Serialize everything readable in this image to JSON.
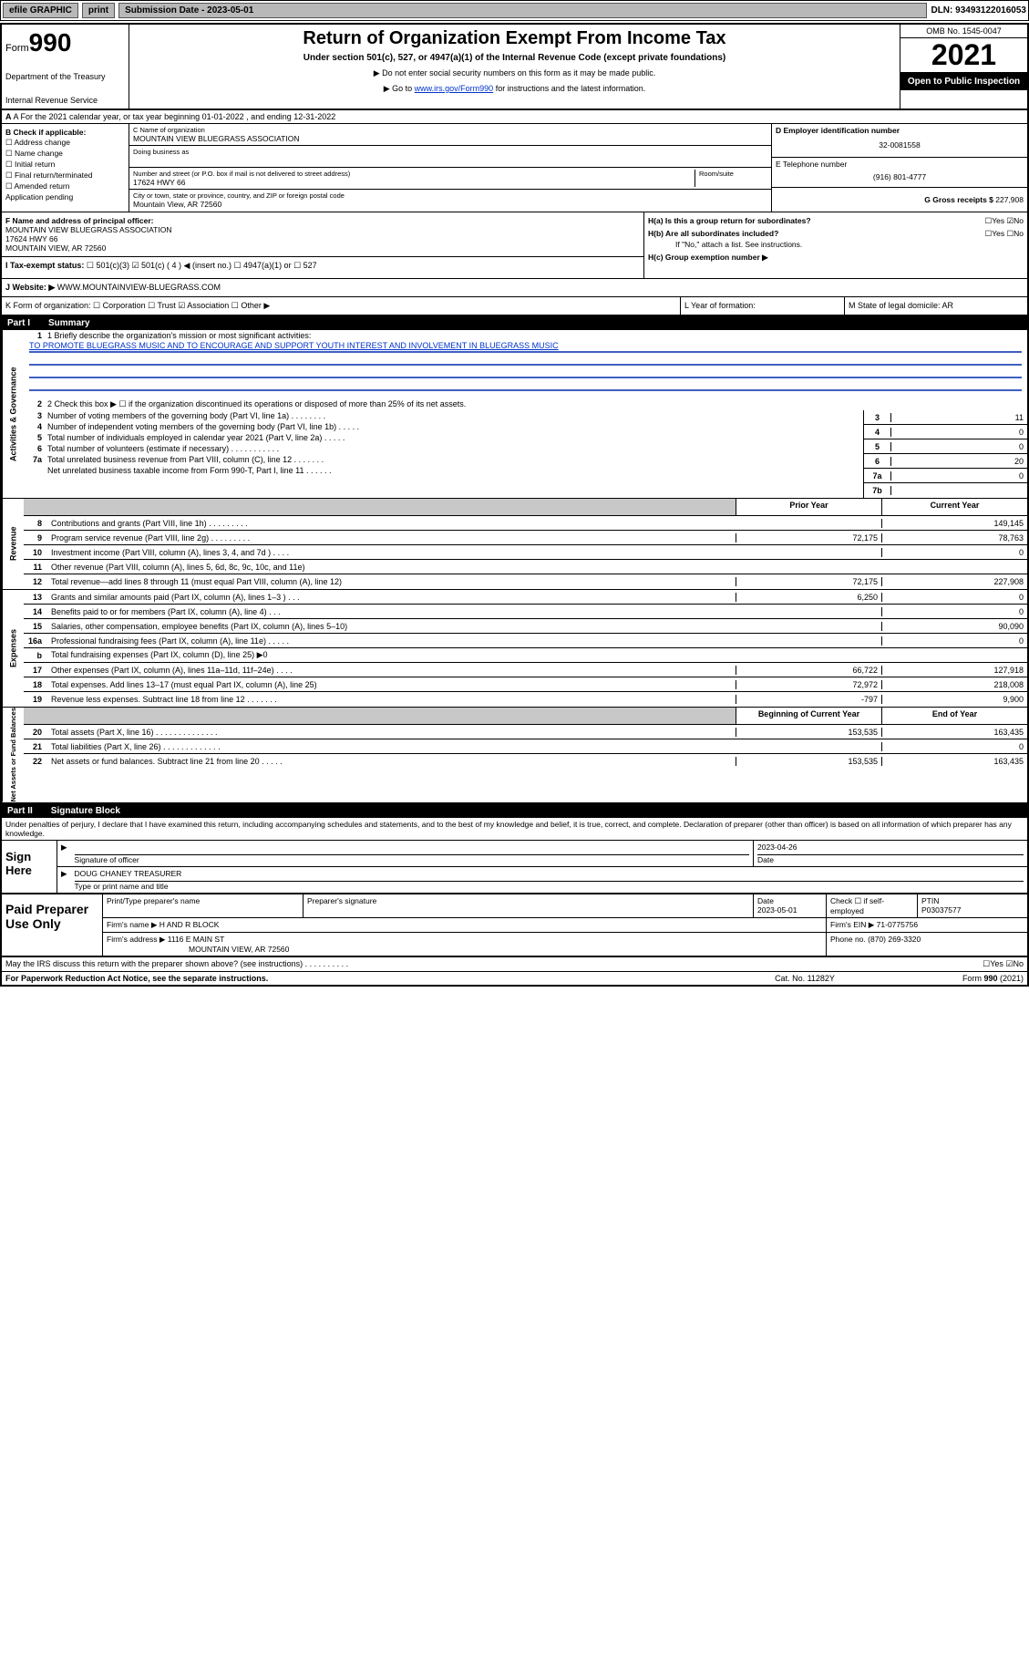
{
  "topbar": {
    "efile": "efile GRAPHIC",
    "print": "print",
    "sub_label": "Submission Date - 2023-05-01",
    "dln": "DLN: 93493122016053"
  },
  "header": {
    "form_prefix": "Form",
    "form_no": "990",
    "dept": "Department of the Treasury",
    "irs": "Internal Revenue Service",
    "title": "Return of Organization Exempt From Income Tax",
    "sub": "Under section 501(c), 527, or 4947(a)(1) of the Internal Revenue Code (except private foundations)",
    "note1": "▶ Do not enter social security numbers on this form as it may be made public.",
    "note2_pre": "▶ Go to ",
    "note2_link": "www.irs.gov/Form990",
    "note2_post": " for instructions and the latest information.",
    "omb": "OMB No. 1545-0047",
    "year": "2021",
    "open": "Open to Public Inspection"
  },
  "rowA": "A For the 2021 calendar year, or tax year beginning 01-01-2022    , and ending 12-31-2022",
  "colB": {
    "label": "B Check if applicable:",
    "items": [
      "☐ Address change",
      "☐ Name change",
      "☐ Initial return",
      "☐ Final return/terminated",
      "☐ Amended return",
      "Application pending"
    ]
  },
  "colC": {
    "name_label": "C Name of organization",
    "name": "MOUNTAIN VIEW BLUEGRASS ASSOCIATION",
    "dba_label": "Doing business as",
    "addr_label": "Number and street (or P.O. box if mail is not delivered to street address)",
    "room": "Room/suite",
    "addr": "17624 HWY 66",
    "city_label": "City or town, state or province, country, and ZIP or foreign postal code",
    "city": "Mountain View, AR  72560"
  },
  "colD": {
    "d_label": "D Employer identification number",
    "d_val": "32-0081558",
    "e_label": "E Telephone number",
    "e_val": "(916) 801-4777",
    "g_label": "G Gross receipts $",
    "g_val": "227,908"
  },
  "rowF": {
    "f_label": "F Name and address of principal officer:",
    "f_name": "MOUNTAIN VIEW BLUEGRASS ASSOCIATION",
    "f_addr": "17624 HWY 66",
    "f_city": "MOUNTAIN VIEW, AR  72560",
    "ha": "H(a)  Is this a group return for subordinates?",
    "ha_ans": "☐Yes ☑No",
    "hb": "H(b)  Are all subordinates included?",
    "hb_ans": "☐Yes ☐No",
    "hb_note": "If \"No,\" attach a list. See instructions.",
    "hc": "H(c)  Group exemption number ▶"
  },
  "rowI": {
    "label": "I   Tax-exempt status:",
    "opts": "☐ 501(c)(3)   ☑ 501(c) ( 4 ) ◀ (insert no.)   ☐ 4947(a)(1) or   ☐ 527"
  },
  "rowJ": {
    "label": "J   Website: ▶",
    "val": "WWW.MOUNTAINVIEW-BLUEGRASS.COM"
  },
  "rowK": {
    "k": "K Form of organization:  ☐ Corporation  ☐ Trust  ☑ Association  ☐ Other ▶",
    "l": "L Year of formation:",
    "m": "M State of legal domicile: AR"
  },
  "part1": {
    "num": "Part I",
    "title": "Summary"
  },
  "summary": {
    "gov_label": "Activities & Governance",
    "line1_label": "1  Briefly describe the organization's mission or most significant activities:",
    "line1_val": "TO PROMOTE BLUEGRASS MUSIC AND TO ENCOURAGE AND SUPPORT YOUTH INTEREST AND INVOLVEMENT IN BLUEGRASS MUSIC",
    "line2": "2   Check this box ▶ ☐  if the organization discontinued its operations or disposed of more than 25% of its net assets.",
    "gov_lines": [
      {
        "n": "3",
        "t": "Number of voting members of the governing body (Part VI, line 1a)   .   .   .   .   .   .   .   .",
        "bn": "3",
        "v": "11"
      },
      {
        "n": "4",
        "t": "Number of independent voting members of the governing body (Part VI, line 1b)   .   .   .   .   .",
        "bn": "4",
        "v": "0"
      },
      {
        "n": "5",
        "t": "Total number of individuals employed in calendar year 2021 (Part V, line 2a)   .   .   .   .   .",
        "bn": "5",
        "v": "0"
      },
      {
        "n": "6",
        "t": "Total number of volunteers (estimate if necessary)   .   .   .   .   .   .   .   .   .   .   .",
        "bn": "6",
        "v": "20"
      },
      {
        "n": "7a",
        "t": "Total unrelated business revenue from Part VIII, column (C), line 12   .   .   .   .   .   .   .",
        "bn": "7a",
        "v": "0"
      },
      {
        "n": "",
        "t": "Net unrelated business taxable income from Form 990-T, Part I, line 11   .   .   .   .   .   .",
        "bn": "7b",
        "v": ""
      }
    ],
    "rev_label": "Revenue",
    "prior": "Prior Year",
    "current": "Current Year",
    "rev_lines": [
      {
        "n": "8",
        "t": "Contributions and grants (Part VIII, line 1h)   .   .   .   .   .   .   .   .   .",
        "c1": "",
        "c2": "149,145"
      },
      {
        "n": "9",
        "t": "Program service revenue (Part VIII, line 2g)   .   .   .   .   .   .   .   .   .",
        "c1": "72,175",
        "c2": "78,763"
      },
      {
        "n": "10",
        "t": "Investment income (Part VIII, column (A), lines 3, 4, and 7d )   .   .   .   .",
        "c1": "",
        "c2": "0"
      },
      {
        "n": "11",
        "t": "Other revenue (Part VIII, column (A), lines 5, 6d, 8c, 9c, 10c, and 11e)",
        "c1": "",
        "c2": ""
      },
      {
        "n": "12",
        "t": "Total revenue—add lines 8 through 11 (must equal Part VIII, column (A), line 12)",
        "c1": "72,175",
        "c2": "227,908"
      }
    ],
    "exp_label": "Expenses",
    "exp_lines": [
      {
        "n": "13",
        "t": "Grants and similar amounts paid (Part IX, column (A), lines 1–3 )   .   .   .",
        "c1": "6,250",
        "c2": "0"
      },
      {
        "n": "14",
        "t": "Benefits paid to or for members (Part IX, column (A), line 4)   .   .   .",
        "c1": "",
        "c2": "0"
      },
      {
        "n": "15",
        "t": "Salaries, other compensation, employee benefits (Part IX, column (A), lines 5–10)",
        "c1": "",
        "c2": "90,090"
      },
      {
        "n": "16a",
        "t": "Professional fundraising fees (Part IX, column (A), line 11e)   .   .   .   .   .",
        "c1": "",
        "c2": "0"
      },
      {
        "n": "b",
        "t": "Total fundraising expenses (Part IX, column (D), line 25) ▶0",
        "c1": "",
        "c2": "",
        "grey": true
      },
      {
        "n": "17",
        "t": "Other expenses (Part IX, column (A), lines 11a–11d, 11f–24e)   .   .   .   .",
        "c1": "66,722",
        "c2": "127,918"
      },
      {
        "n": "18",
        "t": "Total expenses. Add lines 13–17 (must equal Part IX, column (A), line 25)",
        "c1": "72,972",
        "c2": "218,008"
      },
      {
        "n": "19",
        "t": "Revenue less expenses. Subtract line 18 from line 12   .   .   .   .   .   .   .",
        "c1": "-797",
        "c2": "9,900"
      }
    ],
    "net_label": "Net Assets or Fund Balances",
    "boy": "Beginning of Current Year",
    "eoy": "End of Year",
    "net_lines": [
      {
        "n": "20",
        "t": "Total assets (Part X, line 16)   .   .   .   .   .   .   .   .   .   .   .   .   .   .",
        "c1": "153,535",
        "c2": "163,435"
      },
      {
        "n": "21",
        "t": "Total liabilities (Part X, line 26)   .   .   .   .   .   .   .   .   .   .   .   .   .",
        "c1": "",
        "c2": "0"
      },
      {
        "n": "22",
        "t": "Net assets or fund balances. Subtract line 21 from line 20   .   .   .   .   .",
        "c1": "153,535",
        "c2": "163,435"
      }
    ]
  },
  "part2": {
    "num": "Part II",
    "title": "Signature Block"
  },
  "penalty": "Under penalties of perjury, I declare that I have examined this return, including accompanying schedules and statements, and to the best of my knowledge and belief, it is true, correct, and complete. Declaration of preparer (other than officer) is based on all information of which preparer has any knowledge.",
  "sign": {
    "label": "Sign Here",
    "sig_of": "Signature of officer",
    "date": "2023-04-26",
    "date_lbl": "Date",
    "name": "DOUG CHANEY TREASURER",
    "name_lbl": "Type or print name and title"
  },
  "paid": {
    "label": "Paid Preparer Use Only",
    "h1": "Print/Type preparer's name",
    "h2": "Preparer's signature",
    "h3": "Date",
    "h3v": "2023-05-01",
    "h4": "Check ☐ if self-employed",
    "h5": "PTIN",
    "h5v": "P03037577",
    "firm_lbl": "Firm's name    ▶",
    "firm": "H AND R BLOCK",
    "ein_lbl": "Firm's EIN ▶",
    "ein": "71-0775756",
    "addr_lbl": "Firm's address ▶",
    "addr1": "1116 E MAIN ST",
    "addr2": "MOUNTAIN VIEW, AR  72560",
    "phone_lbl": "Phone no.",
    "phone": "(870) 269-3320"
  },
  "discuss": "May the IRS discuss this return with the preparer shown above? (see instructions)   .   .   .   .   .   .   .   .   .   .",
  "discuss_ans": "☐Yes  ☑No",
  "footer": {
    "left": "For Paperwork Reduction Act Notice, see the separate instructions.",
    "mid": "Cat. No. 11282Y",
    "right": "Form 990 (2021)"
  }
}
